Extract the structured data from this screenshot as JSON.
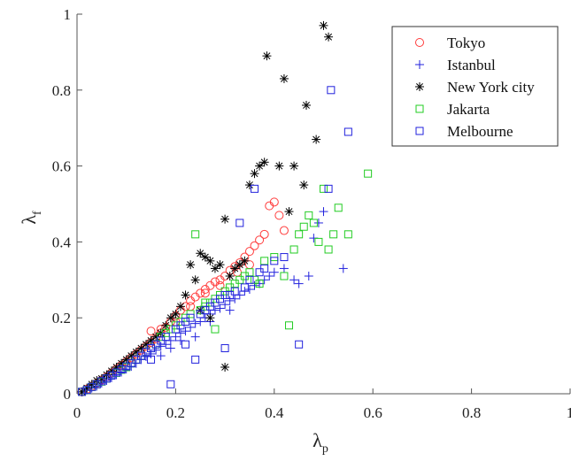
{
  "chart_data": {
    "type": "scatter",
    "xlabel": {
      "base": "λ",
      "sub": "p"
    },
    "ylabel": {
      "base": "λ",
      "sub": "f"
    },
    "xlim": [
      0,
      1
    ],
    "ylim": [
      0,
      1
    ],
    "xticks": [
      0,
      0.2,
      0.4,
      0.6,
      0.8,
      1
    ],
    "xtick_labels": [
      "0",
      "0.2",
      "0.4",
      "0.6",
      "0.8",
      "1"
    ],
    "yticks": [
      0,
      0.2,
      0.4,
      0.6,
      0.8,
      1
    ],
    "ytick_labels": [
      "0",
      "0.2",
      "0.4",
      "0.6",
      "0.8",
      "1"
    ],
    "grid": false,
    "legend_position": "top-right",
    "series": [
      {
        "name": "Tokyo",
        "marker": "circle",
        "color": "#ff3b3b",
        "points": [
          [
            0.01,
            0.005
          ],
          [
            0.02,
            0.012
          ],
          [
            0.03,
            0.02
          ],
          [
            0.04,
            0.028
          ],
          [
            0.05,
            0.036
          ],
          [
            0.06,
            0.045
          ],
          [
            0.07,
            0.055
          ],
          [
            0.08,
            0.065
          ],
          [
            0.09,
            0.075
          ],
          [
            0.1,
            0.085
          ],
          [
            0.11,
            0.095
          ],
          [
            0.12,
            0.105
          ],
          [
            0.13,
            0.115
          ],
          [
            0.14,
            0.125
          ],
          [
            0.15,
            0.135
          ],
          [
            0.16,
            0.145
          ],
          [
            0.17,
            0.16
          ],
          [
            0.18,
            0.175
          ],
          [
            0.19,
            0.19
          ],
          [
            0.2,
            0.205
          ],
          [
            0.21,
            0.22
          ],
          [
            0.22,
            0.23
          ],
          [
            0.23,
            0.245
          ],
          [
            0.24,
            0.255
          ],
          [
            0.25,
            0.265
          ],
          [
            0.26,
            0.275
          ],
          [
            0.27,
            0.285
          ],
          [
            0.28,
            0.295
          ],
          [
            0.29,
            0.3
          ],
          [
            0.3,
            0.31
          ],
          [
            0.31,
            0.325
          ],
          [
            0.32,
            0.335
          ],
          [
            0.33,
            0.345
          ],
          [
            0.34,
            0.36
          ],
          [
            0.35,
            0.375
          ],
          [
            0.36,
            0.39
          ],
          [
            0.37,
            0.405
          ],
          [
            0.38,
            0.42
          ],
          [
            0.39,
            0.495
          ],
          [
            0.4,
            0.505
          ],
          [
            0.41,
            0.47
          ],
          [
            0.42,
            0.43
          ],
          [
            0.15,
            0.165
          ],
          [
            0.17,
            0.17
          ],
          [
            0.2,
            0.19
          ],
          [
            0.23,
            0.23
          ],
          [
            0.26,
            0.265
          ],
          [
            0.29,
            0.285
          ],
          [
            0.325,
            0.32
          ],
          [
            0.35,
            0.34
          ]
        ]
      },
      {
        "name": "Istanbul",
        "marker": "plus",
        "color": "#2222dd",
        "points": [
          [
            0.01,
            0.005
          ],
          [
            0.02,
            0.01
          ],
          [
            0.03,
            0.015
          ],
          [
            0.04,
            0.02
          ],
          [
            0.05,
            0.028
          ],
          [
            0.06,
            0.035
          ],
          [
            0.07,
            0.042
          ],
          [
            0.08,
            0.05
          ],
          [
            0.09,
            0.057
          ],
          [
            0.1,
            0.065
          ],
          [
            0.11,
            0.072
          ],
          [
            0.12,
            0.08
          ],
          [
            0.13,
            0.09
          ],
          [
            0.14,
            0.098
          ],
          [
            0.15,
            0.105
          ],
          [
            0.16,
            0.115
          ],
          [
            0.17,
            0.125
          ],
          [
            0.18,
            0.13
          ],
          [
            0.19,
            0.14
          ],
          [
            0.2,
            0.15
          ],
          [
            0.21,
            0.16
          ],
          [
            0.22,
            0.165
          ],
          [
            0.23,
            0.175
          ],
          [
            0.24,
            0.185
          ],
          [
            0.25,
            0.19
          ],
          [
            0.26,
            0.2
          ],
          [
            0.27,
            0.21
          ],
          [
            0.28,
            0.22
          ],
          [
            0.29,
            0.225
          ],
          [
            0.3,
            0.235
          ],
          [
            0.31,
            0.245
          ],
          [
            0.32,
            0.25
          ],
          [
            0.33,
            0.26
          ],
          [
            0.34,
            0.27
          ],
          [
            0.35,
            0.275
          ],
          [
            0.36,
            0.285
          ],
          [
            0.37,
            0.29
          ],
          [
            0.38,
            0.3
          ],
          [
            0.39,
            0.31
          ],
          [
            0.4,
            0.32
          ],
          [
            0.42,
            0.33
          ],
          [
            0.44,
            0.3
          ],
          [
            0.45,
            0.29
          ],
          [
            0.47,
            0.31
          ],
          [
            0.48,
            0.41
          ],
          [
            0.49,
            0.45
          ],
          [
            0.5,
            0.48
          ],
          [
            0.54,
            0.33
          ],
          [
            0.17,
            0.1
          ],
          [
            0.19,
            0.12
          ],
          [
            0.21,
            0.14
          ],
          [
            0.24,
            0.15
          ],
          [
            0.27,
            0.19
          ],
          [
            0.31,
            0.22
          ]
        ]
      },
      {
        "name": "New York city",
        "marker": "asterisk",
        "color": "#000000",
        "points": [
          [
            0.01,
            0.005
          ],
          [
            0.02,
            0.015
          ],
          [
            0.03,
            0.025
          ],
          [
            0.04,
            0.035
          ],
          [
            0.05,
            0.04
          ],
          [
            0.06,
            0.05
          ],
          [
            0.07,
            0.06
          ],
          [
            0.08,
            0.07
          ],
          [
            0.09,
            0.08
          ],
          [
            0.1,
            0.09
          ],
          [
            0.11,
            0.1
          ],
          [
            0.12,
            0.11
          ],
          [
            0.13,
            0.12
          ],
          [
            0.14,
            0.13
          ],
          [
            0.15,
            0.14
          ],
          [
            0.16,
            0.15
          ],
          [
            0.17,
            0.16
          ],
          [
            0.18,
            0.18
          ],
          [
            0.19,
            0.2
          ],
          [
            0.2,
            0.21
          ],
          [
            0.21,
            0.23
          ],
          [
            0.22,
            0.26
          ],
          [
            0.23,
            0.34
          ],
          [
            0.24,
            0.3
          ],
          [
            0.25,
            0.37
          ],
          [
            0.26,
            0.36
          ],
          [
            0.27,
            0.35
          ],
          [
            0.28,
            0.33
          ],
          [
            0.29,
            0.34
          ],
          [
            0.3,
            0.46
          ],
          [
            0.31,
            0.31
          ],
          [
            0.32,
            0.33
          ],
          [
            0.33,
            0.34
          ],
          [
            0.34,
            0.35
          ],
          [
            0.35,
            0.55
          ],
          [
            0.36,
            0.58
          ],
          [
            0.37,
            0.6
          ],
          [
            0.38,
            0.61
          ],
          [
            0.385,
            0.89
          ],
          [
            0.41,
            0.6
          ],
          [
            0.42,
            0.83
          ],
          [
            0.43,
            0.48
          ],
          [
            0.44,
            0.6
          ],
          [
            0.46,
            0.55
          ],
          [
            0.465,
            0.76
          ],
          [
            0.485,
            0.67
          ],
          [
            0.5,
            0.97
          ],
          [
            0.51,
            0.94
          ],
          [
            0.3,
            0.07
          ],
          [
            0.25,
            0.22
          ],
          [
            0.27,
            0.2
          ]
        ]
      },
      {
        "name": "Jakarta",
        "marker": "square",
        "color": "#22cc22",
        "points": [
          [
            0.01,
            0.005
          ],
          [
            0.02,
            0.01
          ],
          [
            0.03,
            0.018
          ],
          [
            0.04,
            0.025
          ],
          [
            0.05,
            0.032
          ],
          [
            0.06,
            0.04
          ],
          [
            0.07,
            0.048
          ],
          [
            0.08,
            0.055
          ],
          [
            0.09,
            0.063
          ],
          [
            0.1,
            0.07
          ],
          [
            0.11,
            0.08
          ],
          [
            0.12,
            0.09
          ],
          [
            0.13,
            0.1
          ],
          [
            0.14,
            0.11
          ],
          [
            0.15,
            0.12
          ],
          [
            0.16,
            0.13
          ],
          [
            0.17,
            0.15
          ],
          [
            0.18,
            0.16
          ],
          [
            0.19,
            0.17
          ],
          [
            0.2,
            0.18
          ],
          [
            0.21,
            0.19
          ],
          [
            0.22,
            0.2
          ],
          [
            0.23,
            0.21
          ],
          [
            0.24,
            0.42
          ],
          [
            0.25,
            0.22
          ],
          [
            0.26,
            0.23
          ],
          [
            0.27,
            0.24
          ],
          [
            0.28,
            0.25
          ],
          [
            0.29,
            0.26
          ],
          [
            0.3,
            0.27
          ],
          [
            0.31,
            0.28
          ],
          [
            0.32,
            0.29
          ],
          [
            0.33,
            0.3
          ],
          [
            0.34,
            0.31
          ],
          [
            0.35,
            0.32
          ],
          [
            0.36,
            0.3
          ],
          [
            0.37,
            0.29
          ],
          [
            0.38,
            0.35
          ],
          [
            0.4,
            0.36
          ],
          [
            0.42,
            0.31
          ],
          [
            0.43,
            0.18
          ],
          [
            0.44,
            0.38
          ],
          [
            0.45,
            0.42
          ],
          [
            0.46,
            0.44
          ],
          [
            0.47,
            0.47
          ],
          [
            0.48,
            0.45
          ],
          [
            0.49,
            0.4
          ],
          [
            0.5,
            0.54
          ],
          [
            0.51,
            0.38
          ],
          [
            0.52,
            0.42
          ],
          [
            0.53,
            0.49
          ],
          [
            0.55,
            0.42
          ],
          [
            0.59,
            0.58
          ],
          [
            0.26,
            0.24
          ],
          [
            0.28,
            0.17
          ]
        ]
      },
      {
        "name": "Melbourne",
        "marker": "square",
        "color": "#2222dd",
        "points": [
          [
            0.01,
            0.005
          ],
          [
            0.02,
            0.01
          ],
          [
            0.03,
            0.018
          ],
          [
            0.04,
            0.025
          ],
          [
            0.05,
            0.033
          ],
          [
            0.06,
            0.04
          ],
          [
            0.07,
            0.048
          ],
          [
            0.08,
            0.056
          ],
          [
            0.09,
            0.064
          ],
          [
            0.1,
            0.072
          ],
          [
            0.11,
            0.08
          ],
          [
            0.12,
            0.09
          ],
          [
            0.13,
            0.1
          ],
          [
            0.14,
            0.11
          ],
          [
            0.15,
            0.12
          ],
          [
            0.16,
            0.13
          ],
          [
            0.17,
            0.14
          ],
          [
            0.18,
            0.15
          ],
          [
            0.19,
            0.025
          ],
          [
            0.2,
            0.17
          ],
          [
            0.21,
            0.18
          ],
          [
            0.22,
            0.19
          ],
          [
            0.23,
            0.2
          ],
          [
            0.24,
            0.09
          ],
          [
            0.25,
            0.21
          ],
          [
            0.26,
            0.22
          ],
          [
            0.27,
            0.23
          ],
          [
            0.28,
            0.24
          ],
          [
            0.29,
            0.25
          ],
          [
            0.3,
            0.12
          ],
          [
            0.31,
            0.26
          ],
          [
            0.32,
            0.27
          ],
          [
            0.33,
            0.45
          ],
          [
            0.34,
            0.28
          ],
          [
            0.35,
            0.3
          ],
          [
            0.36,
            0.54
          ],
          [
            0.37,
            0.32
          ],
          [
            0.38,
            0.33
          ],
          [
            0.4,
            0.35
          ],
          [
            0.42,
            0.36
          ],
          [
            0.45,
            0.13
          ],
          [
            0.51,
            0.54
          ],
          [
            0.515,
            0.8
          ],
          [
            0.55,
            0.69
          ],
          [
            0.15,
            0.09
          ],
          [
            0.22,
            0.13
          ],
          [
            0.3,
            0.26
          ]
        ]
      }
    ]
  }
}
